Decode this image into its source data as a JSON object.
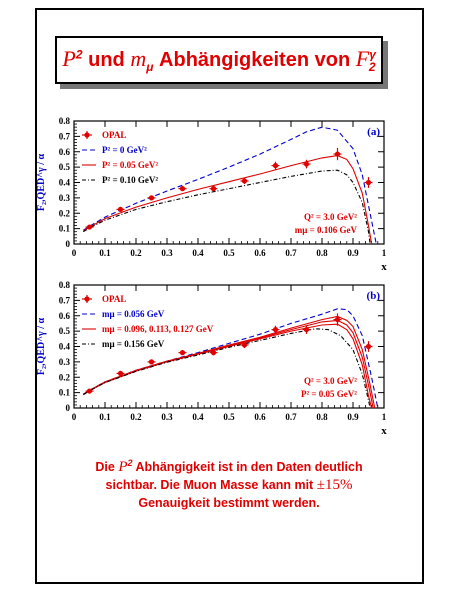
{
  "slide": {
    "title_p": "P",
    "title_p_exp": "2",
    "title_mid": "und",
    "title_m": "m",
    "title_m_sub": "μ",
    "title_rest": "Abhängigkeiten von",
    "title_f": "F",
    "title_f_sup": "γ",
    "title_f_sub": "2",
    "conclusion_line1_a": "Die",
    "conclusion_line1_p": "P",
    "conclusion_line1_exp": "2",
    "conclusion_line1_b": "Abhängigkeit ist in den Daten deutlich",
    "conclusion_line2_a": "sichtbar. Die Muon Masse kann mit",
    "conclusion_line2_pm": "±15%",
    "conclusion_line3": "Genauigkeit bestimmt werden."
  },
  "colors": {
    "red": "#e00000",
    "blue": "#0000cc",
    "black": "#000000"
  },
  "chart_data": [
    {
      "type": "line",
      "panel_label": "(a)",
      "ylabel": "F₂,QED^γ / α",
      "xlabel": "x",
      "xlim": [
        0,
        1
      ],
      "ylim": [
        0,
        0.8
      ],
      "xticks": [
        0,
        0.1,
        0.2,
        0.3,
        0.4,
        0.5,
        0.6,
        0.7,
        0.8,
        0.9,
        1
      ],
      "yticks": [
        0,
        0.1,
        0.2,
        0.3,
        0.4,
        0.5,
        0.6,
        0.7,
        0.8
      ],
      "legend": [
        "OPAL",
        "P² = 0 GeV²",
        "P² = 0.05 GeV²",
        "P² = 0.10 GeV²"
      ],
      "annotation": [
        "Q² = 3.0 GeV²",
        "mμ = 0.106 GeV"
      ],
      "points": [
        {
          "x": 0.05,
          "y": 0.11,
          "err": 0.01
        },
        {
          "x": 0.15,
          "y": 0.225,
          "err": 0.012
        },
        {
          "x": 0.25,
          "y": 0.3,
          "err": 0.013
        },
        {
          "x": 0.35,
          "y": 0.36,
          "err": 0.015
        },
        {
          "x": 0.45,
          "y": 0.36,
          "err": 0.017
        },
        {
          "x": 0.55,
          "y": 0.41,
          "err": 0.02
        },
        {
          "x": 0.65,
          "y": 0.51,
          "err": 0.025
        },
        {
          "x": 0.75,
          "y": 0.52,
          "err": 0.028
        },
        {
          "x": 0.85,
          "y": 0.585,
          "err": 0.04
        },
        {
          "x": 0.95,
          "y": 0.4,
          "err": 0.035
        }
      ],
      "series": [
        {
          "style": "dashed",
          "color": "blue",
          "xmax": 0.975,
          "points": [
            [
              0.03,
              0.09
            ],
            [
              0.05,
              0.115
            ],
            [
              0.1,
              0.175
            ],
            [
              0.2,
              0.265
            ],
            [
              0.3,
              0.345
            ],
            [
              0.4,
              0.42
            ],
            [
              0.5,
              0.5
            ],
            [
              0.6,
              0.585
            ],
            [
              0.7,
              0.68
            ],
            [
              0.75,
              0.73
            ],
            [
              0.8,
              0.76
            ],
            [
              0.85,
              0.74
            ],
            [
              0.9,
              0.62
            ],
            [
              0.93,
              0.45
            ],
            [
              0.96,
              0.15
            ],
            [
              0.975,
              0.0
            ]
          ]
        },
        {
          "style": "solid",
          "color": "red",
          "xmax": 0.96,
          "points": [
            [
              0.03,
              0.085
            ],
            [
              0.05,
              0.11
            ],
            [
              0.1,
              0.165
            ],
            [
              0.2,
              0.24
            ],
            [
              0.3,
              0.3
            ],
            [
              0.4,
              0.355
            ],
            [
              0.5,
              0.405
            ],
            [
              0.6,
              0.455
            ],
            [
              0.7,
              0.51
            ],
            [
              0.8,
              0.56
            ],
            [
              0.85,
              0.575
            ],
            [
              0.88,
              0.55
            ],
            [
              0.9,
              0.49
            ],
            [
              0.93,
              0.33
            ],
            [
              0.95,
              0.12
            ],
            [
              0.96,
              0.0
            ]
          ]
        },
        {
          "style": "dashdot",
          "color": "black",
          "xmax": 0.955,
          "points": [
            [
              0.03,
              0.08
            ],
            [
              0.05,
              0.105
            ],
            [
              0.1,
              0.155
            ],
            [
              0.2,
              0.225
            ],
            [
              0.3,
              0.275
            ],
            [
              0.4,
              0.32
            ],
            [
              0.5,
              0.36
            ],
            [
              0.6,
              0.4
            ],
            [
              0.7,
              0.44
            ],
            [
              0.8,
              0.475
            ],
            [
              0.85,
              0.48
            ],
            [
              0.88,
              0.45
            ],
            [
              0.9,
              0.4
            ],
            [
              0.93,
              0.27
            ],
            [
              0.95,
              0.08
            ],
            [
              0.955,
              0.0
            ]
          ]
        }
      ]
    },
    {
      "type": "line",
      "panel_label": "(b)",
      "ylabel": "F₂,QED^γ / α",
      "xlabel": "x",
      "xlim": [
        0,
        1
      ],
      "ylim": [
        0,
        0.8
      ],
      "xticks": [
        0,
        0.1,
        0.2,
        0.3,
        0.4,
        0.5,
        0.6,
        0.7,
        0.8,
        0.9,
        1
      ],
      "yticks": [
        0,
        0.1,
        0.2,
        0.3,
        0.4,
        0.5,
        0.6,
        0.7,
        0.8
      ],
      "legend": [
        "OPAL",
        "mμ = 0.056 GeV",
        "mμ = 0.096, 0.113, 0.127 GeV",
        "mμ = 0.156 GeV"
      ],
      "annotation": [
        "Q² = 3.0 GeV²",
        "P² = 0.05 GeV²"
      ],
      "points": [
        {
          "x": 0.05,
          "y": 0.11,
          "err": 0.01
        },
        {
          "x": 0.15,
          "y": 0.225,
          "err": 0.012
        },
        {
          "x": 0.25,
          "y": 0.3,
          "err": 0.013
        },
        {
          "x": 0.35,
          "y": 0.36,
          "err": 0.015
        },
        {
          "x": 0.45,
          "y": 0.36,
          "err": 0.017
        },
        {
          "x": 0.55,
          "y": 0.41,
          "err": 0.02
        },
        {
          "x": 0.65,
          "y": 0.51,
          "err": 0.025
        },
        {
          "x": 0.75,
          "y": 0.51,
          "err": 0.028
        },
        {
          "x": 0.85,
          "y": 0.575,
          "err": 0.04
        },
        {
          "x": 0.95,
          "y": 0.4,
          "err": 0.035
        }
      ],
      "series": [
        {
          "style": "dashed",
          "color": "blue",
          "points": [
            [
              0.03,
              0.09
            ],
            [
              0.05,
              0.115
            ],
            [
              0.1,
              0.17
            ],
            [
              0.2,
              0.245
            ],
            [
              0.3,
              0.305
            ],
            [
              0.4,
              0.36
            ],
            [
              0.5,
              0.42
            ],
            [
              0.6,
              0.48
            ],
            [
              0.7,
              0.55
            ],
            [
              0.8,
              0.61
            ],
            [
              0.85,
              0.645
            ],
            [
              0.88,
              0.64
            ],
            [
              0.9,
              0.6
            ],
            [
              0.93,
              0.47
            ],
            [
              0.96,
              0.2
            ],
            [
              0.98,
              0.0
            ]
          ]
        },
        {
          "style": "solid",
          "color": "red",
          "points": [
            [
              0.03,
              0.09
            ],
            [
              0.05,
              0.115
            ],
            [
              0.1,
              0.17
            ],
            [
              0.2,
              0.245
            ],
            [
              0.3,
              0.305
            ],
            [
              0.4,
              0.355
            ],
            [
              0.5,
              0.41
            ],
            [
              0.6,
              0.46
            ],
            [
              0.7,
              0.52
            ],
            [
              0.8,
              0.575
            ],
            [
              0.85,
              0.595
            ],
            [
              0.88,
              0.57
            ],
            [
              0.9,
              0.53
            ],
            [
              0.93,
              0.38
            ],
            [
              0.955,
              0.15
            ],
            [
              0.97,
              0.0
            ]
          ]
        },
        {
          "style": "solid",
          "color": "red",
          "points": [
            [
              0.03,
              0.088
            ],
            [
              0.05,
              0.113
            ],
            [
              0.1,
              0.168
            ],
            [
              0.2,
              0.243
            ],
            [
              0.3,
              0.303
            ],
            [
              0.4,
              0.352
            ],
            [
              0.5,
              0.405
            ],
            [
              0.6,
              0.455
            ],
            [
              0.7,
              0.51
            ],
            [
              0.8,
              0.56
            ],
            [
              0.85,
              0.57
            ],
            [
              0.88,
              0.54
            ],
            [
              0.9,
              0.49
            ],
            [
              0.93,
              0.33
            ],
            [
              0.955,
              0.1
            ],
            [
              0.965,
              0.0
            ]
          ]
        },
        {
          "style": "solid",
          "color": "red",
          "points": [
            [
              0.03,
              0.087
            ],
            [
              0.05,
              0.112
            ],
            [
              0.1,
              0.166
            ],
            [
              0.2,
              0.24
            ],
            [
              0.3,
              0.3
            ],
            [
              0.4,
              0.35
            ],
            [
              0.5,
              0.4
            ],
            [
              0.6,
              0.45
            ],
            [
              0.7,
              0.5
            ],
            [
              0.8,
              0.54
            ],
            [
              0.85,
              0.545
            ],
            [
              0.88,
              0.51
            ],
            [
              0.9,
              0.45
            ],
            [
              0.93,
              0.28
            ],
            [
              0.95,
              0.08
            ],
            [
              0.96,
              0.0
            ]
          ]
        },
        {
          "style": "dashdot",
          "color": "black",
          "points": [
            [
              0.03,
              0.087
            ],
            [
              0.05,
              0.112
            ],
            [
              0.1,
              0.165
            ],
            [
              0.2,
              0.238
            ],
            [
              0.3,
              0.298
            ],
            [
              0.4,
              0.345
            ],
            [
              0.5,
              0.395
            ],
            [
              0.6,
              0.44
            ],
            [
              0.7,
              0.485
            ],
            [
              0.78,
              0.515
            ],
            [
              0.82,
              0.51
            ],
            [
              0.86,
              0.47
            ],
            [
              0.9,
              0.38
            ],
            [
              0.93,
              0.22
            ],
            [
              0.95,
              0.05
            ],
            [
              0.955,
              0.0
            ]
          ]
        }
      ]
    }
  ]
}
